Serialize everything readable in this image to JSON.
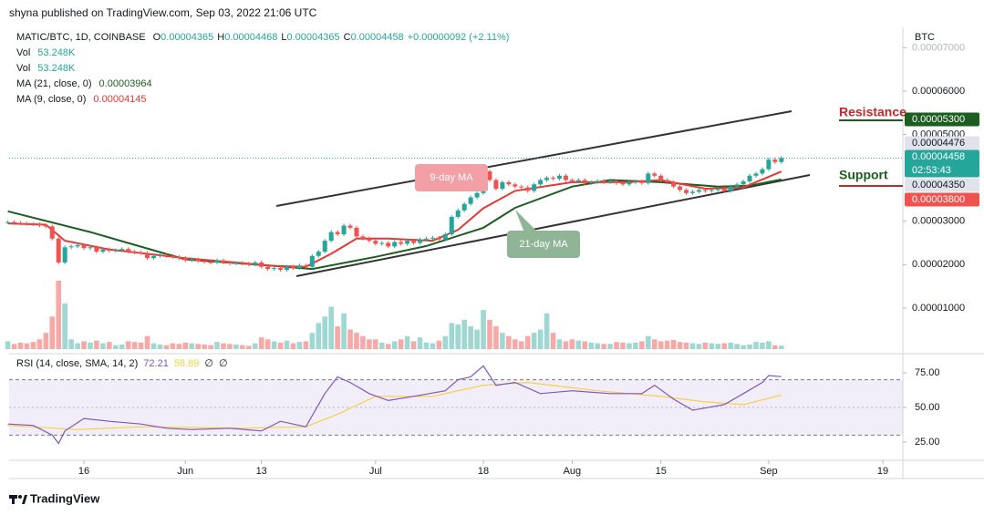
{
  "header": {
    "published": "shyna published on TradingView.com, Sep 03, 2022 21:06 UTC",
    "symbol": "MATIC/BTC, 1D, COINBASE",
    "ohlc": [
      {
        "key": "O",
        "value": "0.00004365"
      },
      {
        "key": "H",
        "value": "0.00004468"
      },
      {
        "key": "L",
        "value": "0.00004365"
      },
      {
        "key": "C",
        "value": "0.00004458"
      }
    ],
    "change": "+0.00000092 (+2.11%)",
    "currency": "BTC"
  },
  "legend": [
    {
      "name": "Vol",
      "value": "53.248K",
      "color": "#26a69a"
    },
    {
      "name": "Vol",
      "value": "53.248K",
      "color": "#26a69a"
    },
    {
      "name": "MA (21, close, 0)",
      "value": "0.00003964",
      "color": "#1b5e20"
    },
    {
      "name": "MA (9, close, 0)",
      "value": "0.00004145",
      "color": "#e53935"
    }
  ],
  "chart_data": {
    "type": "candlestick",
    "x": [
      "2022-05-04",
      "2022-05-05",
      "2022-05-06",
      "2022-05-07",
      "2022-05-08",
      "2022-05-09",
      "2022-05-10",
      "2022-05-11",
      "2022-05-12",
      "2022-05-13",
      "2022-05-14",
      "2022-05-15",
      "2022-05-16",
      "2022-05-17",
      "2022-05-18",
      "2022-05-19",
      "2022-05-20",
      "2022-05-21",
      "2022-05-22",
      "2022-05-23",
      "2022-05-24",
      "2022-05-25",
      "2022-05-26",
      "2022-05-27",
      "2022-05-28",
      "2022-05-29",
      "2022-05-30",
      "2022-05-31",
      "2022-06-01",
      "2022-06-02",
      "2022-06-03",
      "2022-06-04",
      "2022-06-05",
      "2022-06-06",
      "2022-06-07",
      "2022-06-08",
      "2022-06-09",
      "2022-06-10",
      "2022-06-11",
      "2022-06-12",
      "2022-06-13",
      "2022-06-14",
      "2022-06-15",
      "2022-06-16",
      "2022-06-17",
      "2022-06-18",
      "2022-06-19",
      "2022-06-20",
      "2022-06-21",
      "2022-06-22",
      "2022-06-23",
      "2022-06-24",
      "2022-06-25",
      "2022-06-26",
      "2022-06-27",
      "2022-06-28",
      "2022-06-29",
      "2022-06-30",
      "2022-07-01",
      "2022-07-02",
      "2022-07-03",
      "2022-07-04",
      "2022-07-05",
      "2022-07-06",
      "2022-07-07",
      "2022-07-08",
      "2022-07-09",
      "2022-07-10",
      "2022-07-11",
      "2022-07-12",
      "2022-07-13",
      "2022-07-14",
      "2022-07-15",
      "2022-07-16",
      "2022-07-17",
      "2022-07-18",
      "2022-07-19",
      "2022-07-20",
      "2022-07-21",
      "2022-07-22",
      "2022-07-23",
      "2022-07-24",
      "2022-07-25",
      "2022-07-26",
      "2022-07-27",
      "2022-07-28",
      "2022-07-29",
      "2022-07-30",
      "2022-07-31",
      "2022-08-01",
      "2022-08-02",
      "2022-08-03",
      "2022-08-04",
      "2022-08-05",
      "2022-08-06",
      "2022-08-07",
      "2022-08-08",
      "2022-08-09",
      "2022-08-10",
      "2022-08-11",
      "2022-08-12",
      "2022-08-13",
      "2022-08-14",
      "2022-08-15",
      "2022-08-16",
      "2022-08-17",
      "2022-08-18",
      "2022-08-19",
      "2022-08-20",
      "2022-08-21",
      "2022-08-22",
      "2022-08-23",
      "2022-08-24",
      "2022-08-25",
      "2022-08-26",
      "2022-08-27",
      "2022-08-28",
      "2022-08-29",
      "2022-08-30",
      "2022-08-31",
      "2022-09-01",
      "2022-09-02",
      "2022-09-03"
    ],
    "series": [
      {
        "name": "MATIC/BTC",
        "up_color": "#26a69a",
        "down_color": "#ef5350",
        "values": [
          2.98e-05,
          2.96e-05,
          2.95e-05,
          2.94e-05,
          2.93e-05,
          2.9e-05,
          2.88e-05,
          2.6e-05,
          2.05e-05,
          2.4e-05,
          2.42e-05,
          2.45e-05,
          2.38e-05,
          2.4e-05,
          2.3e-05,
          2.35e-05,
          2.32e-05,
          2.33e-05,
          2.36e-05,
          2.3e-05,
          2.28e-05,
          2.27e-05,
          2.15e-05,
          2.2e-05,
          2.22e-05,
          2.2e-05,
          2.18e-05,
          2.15e-05,
          2.1e-05,
          2.12e-05,
          2.08e-05,
          2.06e-05,
          2.05e-05,
          2.1e-05,
          2.05e-05,
          2.03e-05,
          2.04e-05,
          2.02e-05,
          2e-05,
          2.05e-05,
          1.95e-05,
          1.9e-05,
          1.92e-05,
          1.88e-05,
          1.95e-05,
          1.92e-05,
          1.98e-05,
          1.95e-05,
          2.2e-05,
          2.3e-05,
          2.55e-05,
          2.75e-05,
          2.7e-05,
          2.9e-05,
          2.85e-05,
          2.65e-05,
          2.6e-05,
          2.55e-05,
          2.48e-05,
          2.5e-05,
          2.42e-05,
          2.52e-05,
          2.48e-05,
          2.55e-05,
          2.5e-05,
          2.58e-05,
          2.6e-05,
          2.62e-05,
          2.58e-05,
          2.7e-05,
          3.1e-05,
          3.25e-05,
          3.4e-05,
          3.55e-05,
          3.65e-05,
          4.15e-05,
          3.95e-05,
          3.75e-05,
          3.9e-05,
          3.85e-05,
          3.8e-05,
          3.78e-05,
          3.7e-05,
          3.85e-05,
          3.95e-05,
          4e-05,
          3.98e-05,
          4.05e-05,
          3.95e-05,
          3.92e-05,
          3.95e-05,
          3.88e-05,
          3.9e-05,
          3.93e-05,
          3.9e-05,
          3.92e-05,
          3.88e-05,
          3.85e-05,
          3.9e-05,
          3.92e-05,
          3.88e-05,
          4.1e-05,
          4.05e-05,
          3.95e-05,
          3.9e-05,
          3.8e-05,
          3.72e-05,
          3.65e-05,
          3.68e-05,
          3.72e-05,
          3.7e-05,
          3.72e-05,
          3.75e-05,
          3.7e-05,
          3.8e-05,
          3.85e-05,
          3.92e-05,
          4.05e-05,
          4.1e-05,
          4.2e-05,
          4.42e-05,
          4.365e-05,
          4.458e-05
        ]
      }
    ],
    "xlim": [
      "2022-05-04",
      "2022-09-22"
    ],
    "xticks": [
      {
        "value": "2022-05-16",
        "label": "16"
      },
      {
        "value": "2022-06-01",
        "label": "Jun"
      },
      {
        "value": "2022-06-13",
        "label": "13"
      },
      {
        "value": "2022-07-01",
        "label": "Jul"
      },
      {
        "value": "2022-07-18",
        "label": "18"
      },
      {
        "value": "2022-08-01",
        "label": "Aug"
      },
      {
        "value": "2022-08-15",
        "label": "15"
      },
      {
        "value": "2022-09-01",
        "label": "Sep"
      },
      {
        "value": "2022-09-19",
        "label": "19"
      }
    ],
    "ylim": [
      0,
      7.47e-05
    ],
    "yticks": [
      {
        "value": 1e-05,
        "label": "0.00001000"
      },
      {
        "value": 2e-05,
        "label": "0.00002000"
      },
      {
        "value": 3e-05,
        "label": "0.00003000"
      },
      {
        "value": 5e-05,
        "label": "0.00005000"
      },
      {
        "value": 6e-05,
        "label": "0.00006000"
      },
      {
        "value": 7e-05,
        "label": "0.00007000"
      }
    ],
    "price_labels": [
      {
        "value": 5.3e-05,
        "label": "0.00005300",
        "color": "#1b5e20",
        "text_color": "#ffffff"
      },
      {
        "value": 4.476e-05,
        "label": "0.00004476",
        "color": "#e0e3eb",
        "text_color": "#131722"
      },
      {
        "value": 4.458e-05,
        "label": "0.00004458",
        "sub": "02:53:43",
        "color": "#26a69a",
        "text_color": "#ffffff"
      },
      {
        "value": 4.35e-05,
        "label": "0.00004350",
        "color": "#e0e3eb",
        "text_color": "#131722"
      },
      {
        "value": 3.8e-05,
        "label": "0.00003800",
        "color": "#ef5350",
        "text_color": "#ffffff"
      }
    ],
    "volume": {
      "name": "Vol",
      "ylim": [
        0,
        1400
      ],
      "up_color": "#9fd8d2",
      "down_color": "#f7a9a7",
      "values": [
        120,
        80,
        100,
        90,
        110,
        150,
        250,
        500,
        1050,
        700,
        150,
        90,
        120,
        100,
        130,
        90,
        110,
        60,
        70,
        120,
        110,
        100,
        200,
        90,
        70,
        60,
        90,
        80,
        100,
        90,
        80,
        70,
        60,
        110,
        90,
        80,
        70,
        60,
        50,
        90,
        180,
        150,
        120,
        100,
        130,
        90,
        110,
        120,
        250,
        400,
        500,
        650,
        350,
        550,
        300,
        250,
        200,
        150,
        150,
        100,
        80,
        120,
        150,
        200,
        120,
        180,
        100,
        90,
        130,
        200,
        400,
        380,
        450,
        350,
        300,
        600,
        450,
        350,
        250,
        200,
        150,
        120,
        200,
        250,
        300,
        550,
        250,
        150,
        120,
        150,
        130,
        120,
        100,
        90,
        80,
        80,
        110,
        100,
        90,
        100,
        120,
        200,
        150,
        120,
        130,
        140,
        110,
        100,
        90,
        80,
        100,
        90,
        80,
        90,
        100,
        80,
        60,
        70,
        110,
        100,
        120,
        60,
        53.248
      ]
    },
    "indicators": [
      {
        "name": "MA (21, close, 0)",
        "color": "#1b5e20",
        "x": [
          "2022-05-04",
          "2022-05-17",
          "2022-06-01",
          "2022-06-15",
          "2022-06-21",
          "2022-07-01",
          "2022-07-09",
          "2022-07-18",
          "2022-07-23",
          "2022-08-01",
          "2022-08-07",
          "2022-08-15",
          "2022-08-24",
          "2022-08-29",
          "2022-09-03"
        ],
        "values": [
          3.23e-05,
          2.75e-05,
          2.12e-05,
          1.97e-05,
          1.9e-05,
          2.18e-05,
          2.43e-05,
          2.85e-05,
          3.31e-05,
          3.8e-05,
          3.95e-05,
          3.9e-05,
          3.8e-05,
          3.82e-05,
          3.964e-05
        ]
      },
      {
        "name": "MA (9, close, 0)",
        "color": "#e53935",
        "x": [
          "2022-05-04",
          "2022-05-10",
          "2022-05-13",
          "2022-05-20",
          "2022-06-01",
          "2022-06-15",
          "2022-06-20",
          "2022-06-24",
          "2022-06-28",
          "2022-07-03",
          "2022-07-10",
          "2022-07-14",
          "2022-07-18",
          "2022-07-23",
          "2022-08-01",
          "2022-08-10",
          "2022-08-15",
          "2022-08-22",
          "2022-08-28",
          "2022-09-03"
        ],
        "values": [
          2.95e-05,
          2.92e-05,
          2.55e-05,
          2.35e-05,
          2.15e-05,
          1.97e-05,
          1.95e-05,
          2.25e-05,
          2.6e-05,
          2.6e-05,
          2.55e-05,
          2.8e-05,
          3.3e-05,
          3.7e-05,
          3.9e-05,
          3.9e-05,
          3.95e-05,
          3.75e-05,
          3.78e-05,
          4.145e-05
        ]
      }
    ],
    "rsi": {
      "name": "RSI (14, close, SMA, 14, 2)",
      "ylim": [
        11.8,
        87.5
      ],
      "band": [
        30,
        70
      ],
      "yticks": [
        {
          "value": 25,
          "label": "25.00"
        },
        {
          "value": 50,
          "label": "50.00"
        },
        {
          "value": 75,
          "label": "75.00"
        }
      ],
      "legend_values": [
        "72.21",
        "58.89",
        "∅",
        "∅"
      ],
      "series": [
        {
          "name": "RSI",
          "color": "#7e57c2",
          "x": [
            "2022-05-04",
            "2022-05-08",
            "2022-05-11",
            "2022-05-12",
            "2022-05-13",
            "2022-05-16",
            "2022-05-20",
            "2022-05-25",
            "2022-05-29",
            "2022-06-02",
            "2022-06-08",
            "2022-06-13",
            "2022-06-16",
            "2022-06-20",
            "2022-06-23",
            "2022-06-25",
            "2022-06-27",
            "2022-06-30",
            "2022-07-03",
            "2022-07-07",
            "2022-07-12",
            "2022-07-14",
            "2022-07-16",
            "2022-07-18",
            "2022-07-20",
            "2022-07-23",
            "2022-07-27",
            "2022-08-01",
            "2022-08-07",
            "2022-08-12",
            "2022-08-14",
            "2022-08-17",
            "2022-08-20",
            "2022-08-25",
            "2022-08-28",
            "2022-08-31",
            "2022-09-01",
            "2022-09-03"
          ],
          "values": [
            38,
            37,
            30,
            24,
            33,
            42,
            40,
            38,
            35,
            34,
            35,
            33,
            40,
            36,
            60,
            72,
            68,
            60,
            55,
            58,
            62,
            70,
            72,
            80,
            66,
            68,
            60,
            62,
            60,
            60,
            66,
            56,
            48,
            52,
            60,
            68,
            73,
            72.21
          ]
        },
        {
          "name": "RSI-based MA",
          "color": "#f5d142",
          "x": [
            "2022-05-04",
            "2022-05-15",
            "2022-05-25",
            "2022-06-10",
            "2022-06-20",
            "2022-06-25",
            "2022-07-01",
            "2022-07-10",
            "2022-07-18",
            "2022-07-25",
            "2022-08-05",
            "2022-08-15",
            "2022-08-22",
            "2022-08-28",
            "2022-09-03"
          ],
          "values": [
            37,
            34,
            36,
            35,
            36,
            45,
            58,
            58,
            66,
            68,
            62,
            58,
            54,
            52,
            58.89
          ]
        }
      ]
    },
    "annotations": {
      "resistance": "Resistance",
      "support": "Support",
      "ma9": "9-day MA",
      "ma21": "21-day MA"
    }
  },
  "footer": "TradingView"
}
